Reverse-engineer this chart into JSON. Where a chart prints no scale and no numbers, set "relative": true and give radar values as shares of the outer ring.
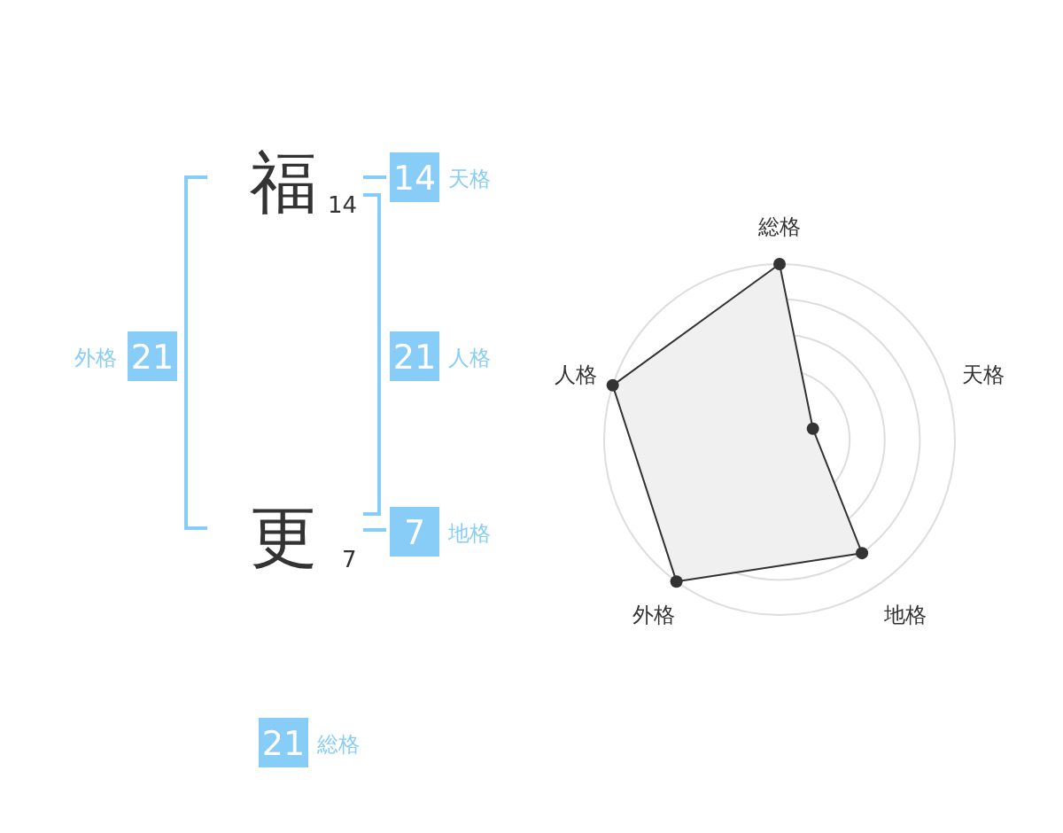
{
  "chart_data": [
    {
      "type": "other",
      "categories": [
        "天格",
        "人格",
        "地格",
        "外格",
        "総格"
      ],
      "values": [
        14,
        21,
        7,
        21,
        21
      ],
      "color": "#88cdf8",
      "data_labels": true,
      "annotations": [
        "福",
        "14",
        "更",
        "7"
      ]
    },
    {
      "type": "radar",
      "categories": [
        "総格",
        "天格",
        "地格",
        "外格",
        "人格"
      ],
      "relative": true,
      "grid": true,
      "marker": "circle",
      "series": [
        {
          "color": "#333333",
          "values": [
            1,
            0.2,
            0.8,
            1,
            1
          ]
        }
      ]
    }
  ]
}
